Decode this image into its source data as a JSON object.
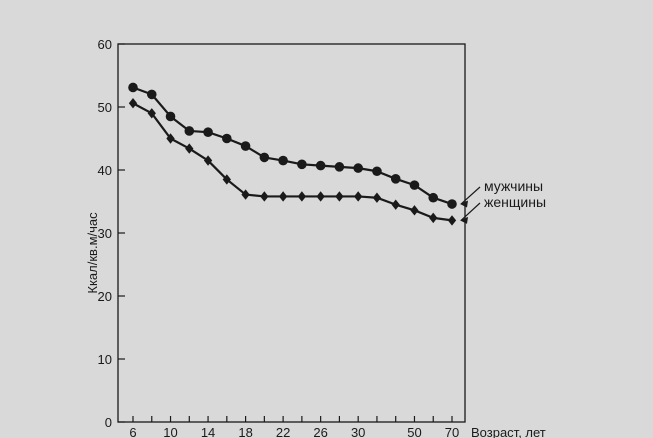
{
  "chart_data": {
    "type": "line",
    "title": "",
    "ylabel": "Ккал/кв.м/час",
    "xlabel": "Возраст, лет",
    "ylim": [
      0,
      60
    ],
    "yticks": [
      0,
      10,
      20,
      30,
      40,
      50,
      60
    ],
    "x": [
      6,
      8,
      10,
      12,
      14,
      16,
      18,
      20,
      22,
      24,
      26,
      28,
      30,
      32,
      40,
      50,
      60,
      70
    ],
    "xtick_labels": [
      "6",
      "10",
      "14",
      "18",
      "22",
      "26",
      "30",
      "50",
      "70"
    ],
    "grid": false,
    "legend": "right",
    "series": [
      {
        "name": "мужчины",
        "marker": "circle",
        "color": "#1a1a1a",
        "values": [
          53.1,
          52.0,
          48.5,
          46.2,
          46.0,
          45.0,
          43.8,
          42.0,
          41.5,
          40.9,
          40.7,
          40.5,
          40.3,
          39.8,
          38.6,
          37.6,
          35.6,
          34.6
        ]
      },
      {
        "name": "женщины",
        "marker": "diamond",
        "color": "#1a1a1a",
        "values": [
          50.6,
          49.0,
          45.0,
          43.4,
          41.5,
          38.5,
          36.1,
          35.8,
          35.8,
          35.8,
          35.8,
          35.8,
          35.8,
          35.6,
          34.5,
          33.6,
          32.4,
          32.0
        ]
      }
    ]
  }
}
